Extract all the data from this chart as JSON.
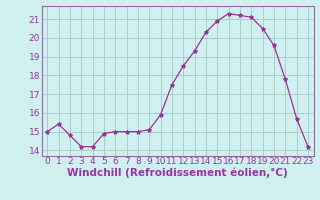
{
  "x": [
    0,
    1,
    2,
    3,
    4,
    5,
    6,
    7,
    8,
    9,
    10,
    11,
    12,
    13,
    14,
    15,
    16,
    17,
    18,
    19,
    20,
    21,
    22,
    23
  ],
  "y": [
    15.0,
    15.4,
    14.8,
    14.2,
    14.2,
    14.9,
    15.0,
    15.0,
    15.0,
    15.1,
    15.9,
    17.5,
    18.5,
    19.3,
    20.3,
    20.9,
    21.3,
    21.2,
    21.1,
    20.5,
    19.6,
    17.8,
    15.7,
    14.2
  ],
  "line_color": "#993399",
  "marker": "*",
  "marker_size": 3,
  "bg_color": "#d0f0f0",
  "grid_color": "#aacccc",
  "xlabel": "Windchill (Refroidissement éolien,°C)",
  "ylim": [
    13.7,
    21.7
  ],
  "xlim": [
    -0.5,
    23.5
  ],
  "yticks": [
    14,
    15,
    16,
    17,
    18,
    19,
    20,
    21
  ],
  "xticks": [
    0,
    1,
    2,
    3,
    4,
    5,
    6,
    7,
    8,
    9,
    10,
    11,
    12,
    13,
    14,
    15,
    16,
    17,
    18,
    19,
    20,
    21,
    22,
    23
  ],
  "tick_labelsize": 6.5,
  "xlabel_fontsize": 7.5,
  "spine_color": "#9966aa",
  "tick_color": "#9966aa",
  "label_color": "#9933aa"
}
